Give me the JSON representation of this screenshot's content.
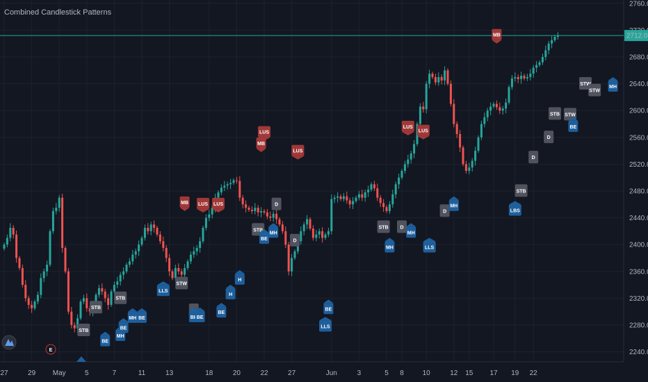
{
  "indicator_title": "Combined Candlestick Patterns",
  "colors": {
    "background": "#131722",
    "grid": "#1e222d",
    "up": "#26a69a",
    "down": "#ef5350",
    "bull_tag": "#2962ff",
    "bull_tag_fill": "#1e5f9c",
    "bear_tag": "#a13838",
    "neutral_tag": "#50535e",
    "price_line": "#26a69a",
    "axis_text": "#b2b5be"
  },
  "icons": {
    "logo": "tradingview-logo-icon",
    "earnings": "earnings-e-icon"
  },
  "earnings_label": "E",
  "chart_data": {
    "type": "candlestick",
    "title": "Combined Candlestick Patterns",
    "last_price": 2712.0,
    "last_price_label": "2712.00",
    "y_axis": {
      "range": [
        2225,
        2765
      ],
      "ticks": [
        2760,
        2720,
        2680,
        2640,
        2600,
        2560,
        2520,
        2480,
        2440,
        2400,
        2360,
        2320,
        2280,
        2240
      ],
      "tick_labels": [
        "2760.00",
        "2720.00",
        "2680.00",
        "2640.00",
        "2600.00",
        "2560.00",
        "2520.00",
        "2480.00",
        "2440.00",
        "2400.00",
        "2360.00",
        "2320.00",
        "2280.00",
        "2240.00"
      ]
    },
    "x_axis": {
      "ticks": [
        {
          "label": "27",
          "index": 0
        },
        {
          "label": "29",
          "index": 9
        },
        {
          "label": "May",
          "index": 18
        },
        {
          "label": "5",
          "index": 27
        },
        {
          "label": "7",
          "index": 36
        },
        {
          "label": "11",
          "index": 45
        },
        {
          "label": "13",
          "index": 54
        },
        {
          "label": "18",
          "index": 67
        },
        {
          "label": "20",
          "index": 76
        },
        {
          "label": "22",
          "index": 85
        },
        {
          "label": "27",
          "index": 94
        },
        {
          "label": "Jun",
          "index": 107
        },
        {
          "label": "3",
          "index": 116
        },
        {
          "label": "5",
          "index": 125
        },
        {
          "label": "8",
          "index": 130
        },
        {
          "label": "10",
          "index": 138
        },
        {
          "label": "12",
          "index": 147
        },
        {
          "label": "15",
          "index": 152
        },
        {
          "label": "17",
          "index": 160
        },
        {
          "label": "19",
          "index": 167
        },
        {
          "label": "22",
          "index": 173
        }
      ]
    },
    "closes": [
      2400,
      2410,
      2425,
      2415,
      2380,
      2365,
      2340,
      2320,
      2310,
      2305,
      2315,
      2325,
      2350,
      2360,
      2370,
      2420,
      2450,
      2455,
      2470,
      2395,
      2360,
      2300,
      2280,
      2275,
      2290,
      2315,
      2320,
      2305,
      2300,
      2310,
      2325,
      2335,
      2330,
      2320,
      2310,
      2330,
      2340,
      2345,
      2355,
      2360,
      2370,
      2375,
      2385,
      2390,
      2400,
      2410,
      2425,
      2420,
      2430,
      2425,
      2415,
      2405,
      2395,
      2380,
      2360,
      2350,
      2365,
      2360,
      2355,
      2365,
      2375,
      2385,
      2390,
      2395,
      2405,
      2425,
      2440,
      2445,
      2455,
      2470,
      2478,
      2485,
      2488,
      2490,
      2492,
      2496,
      2495,
      2470,
      2460,
      2455,
      2452,
      2450,
      2455,
      2448,
      2450,
      2448,
      2442,
      2440,
      2446,
      2438,
      2430,
      2420,
      2400,
      2360,
      2380,
      2390,
      2405,
      2420,
      2430,
      2438,
      2424,
      2410,
      2415,
      2420,
      2410,
      2415,
      2420,
      2468,
      2470,
      2472,
      2468,
      2472,
      2466,
      2460,
      2465,
      2470,
      2475,
      2470,
      2478,
      2482,
      2490,
      2484,
      2470,
      2462,
      2456,
      2450,
      2460,
      2475,
      2490,
      2500,
      2510,
      2520,
      2527,
      2536,
      2550,
      2580,
      2606,
      2602,
      2640,
      2655,
      2650,
      2642,
      2650,
      2645,
      2660,
      2640,
      2610,
      2580,
      2565,
      2545,
      2520,
      2510,
      2515,
      2525,
      2540,
      2560,
      2580,
      2590,
      2600,
      2606,
      2610,
      2605,
      2600,
      2603,
      2612,
      2635,
      2648,
      2650,
      2647,
      2652,
      2648,
      2650,
      2655,
      2664,
      2668,
      2672,
      2680,
      2690,
      2700,
      2705,
      2710,
      2712
    ],
    "tag_note": "Pattern tags as printed on the chart",
    "pattern_tags": [
      {
        "text": "STB",
        "kind": "neutral",
        "index": 26,
        "price": 2282,
        "below": true
      },
      {
        "text": "STB",
        "kind": "neutral",
        "index": 30,
        "price": 2316,
        "below": true
      },
      {
        "text": "BE",
        "kind": "bull",
        "index": 33,
        "price": 2270,
        "below": true
      },
      {
        "text": "STB",
        "kind": "neutral",
        "index": 38,
        "price": 2330,
        "below": true
      },
      {
        "text": "MH",
        "kind": "bull",
        "index": 38,
        "price": 2278,
        "below": true
      },
      {
        "text": "BE",
        "kind": "bull",
        "index": 39,
        "price": 2290,
        "below": true
      },
      {
        "text": "MH",
        "kind": "bull",
        "index": 42,
        "price": 2305,
        "below": true
      },
      {
        "text": "BE",
        "kind": "bull",
        "index": 45,
        "price": 2305,
        "below": true
      },
      {
        "text": "LLS",
        "kind": "bull",
        "index": 52,
        "price": 2345,
        "below": true
      },
      {
        "text": "STW",
        "kind": "neutral",
        "index": 58,
        "price": 2352,
        "below": true
      },
      {
        "text": "MB",
        "kind": "bear",
        "index": 59,
        "price": 2450,
        "below": false
      },
      {
        "text": "LUS",
        "kind": "bear",
        "index": 65,
        "price": 2448,
        "below": false
      },
      {
        "text": "LUS",
        "kind": "bear",
        "index": 70,
        "price": 2448,
        "below": false
      },
      {
        "text": "D",
        "kind": "neutral",
        "index": 62,
        "price": 2312,
        "below": true
      },
      {
        "text": "BH",
        "kind": "bull",
        "index": 62,
        "price": 2306,
        "below": true
      },
      {
        "text": "BE",
        "kind": "bull",
        "index": 64,
        "price": 2306,
        "below": true
      },
      {
        "text": "BE",
        "kind": "bull",
        "index": 71,
        "price": 2313,
        "below": true
      },
      {
        "text": "H",
        "kind": "bull",
        "index": 74,
        "price": 2340,
        "below": true
      },
      {
        "text": "H",
        "kind": "bull",
        "index": 77,
        "price": 2362,
        "below": true
      },
      {
        "text": "STB",
        "kind": "neutral",
        "index": 83,
        "price": 2432,
        "below": true
      },
      {
        "text": "BE",
        "kind": "bull",
        "index": 85,
        "price": 2423,
        "below": true
      },
      {
        "text": "MB",
        "kind": "bear",
        "index": 84,
        "price": 2538,
        "below": false
      },
      {
        "text": "LUS",
        "kind": "bear",
        "index": 85,
        "price": 2555,
        "below": false
      },
      {
        "text": "D",
        "kind": "neutral",
        "index": 89,
        "price": 2470,
        "below": true
      },
      {
        "text": "MH",
        "kind": "bull",
        "index": 88,
        "price": 2432,
        "below": true
      },
      {
        "text": "LUS",
        "kind": "bear",
        "index": 96,
        "price": 2527,
        "below": false
      },
      {
        "text": "D",
        "kind": "neutral",
        "index": 95,
        "price": 2416,
        "below": true
      },
      {
        "text": "BE",
        "kind": "bull",
        "index": 106,
        "price": 2318,
        "below": true
      },
      {
        "text": "LLS",
        "kind": "bull",
        "index": 105,
        "price": 2292,
        "below": true
      },
      {
        "text": "STB",
        "kind": "neutral",
        "index": 124,
        "price": 2436,
        "below": true
      },
      {
        "text": "MH",
        "kind": "bull",
        "index": 126,
        "price": 2410,
        "below": true
      },
      {
        "text": "D",
        "kind": "neutral",
        "index": 130,
        "price": 2436,
        "below": true
      },
      {
        "text": "MH",
        "kind": "bull",
        "index": 133,
        "price": 2432,
        "below": true
      },
      {
        "text": "LUS",
        "kind": "bear",
        "index": 132,
        "price": 2563,
        "below": false
      },
      {
        "text": "LUS",
        "kind": "bear",
        "index": 137,
        "price": 2557,
        "below": false
      },
      {
        "text": "LLS",
        "kind": "bull",
        "index": 139,
        "price": 2410,
        "below": true
      },
      {
        "text": "D",
        "kind": "neutral",
        "index": 144,
        "price": 2460,
        "below": true
      },
      {
        "text": "MH",
        "kind": "bull",
        "index": 147,
        "price": 2472,
        "below": true
      },
      {
        "text": "MB",
        "kind": "bear",
        "index": 161,
        "price": 2700,
        "below": false
      },
      {
        "text": "STB",
        "kind": "neutral",
        "index": 169,
        "price": 2490,
        "below": true
      },
      {
        "text": "LBS",
        "kind": "bull",
        "index": 167,
        "price": 2465,
        "below": true
      },
      {
        "text": "D",
        "kind": "neutral",
        "index": 173,
        "price": 2540,
        "below": true
      },
      {
        "text": "D",
        "kind": "neutral",
        "index": 178,
        "price": 2570,
        "below": true
      },
      {
        "text": "STB",
        "kind": "neutral",
        "index": 180,
        "price": 2605,
        "below": true
      },
      {
        "text": "STW",
        "kind": "neutral",
        "index": 185,
        "price": 2604,
        "below": true
      },
      {
        "text": "BE",
        "kind": "bull",
        "index": 186,
        "price": 2590,
        "below": true
      },
      {
        "text": "STW",
        "kind": "neutral",
        "index": 190,
        "price": 2650,
        "below": true
      },
      {
        "text": "STW",
        "kind": "neutral",
        "index": 193,
        "price": 2640,
        "below": true
      },
      {
        "text": "MH",
        "kind": "bull",
        "index": 199,
        "price": 2650,
        "below": true
      }
    ]
  }
}
